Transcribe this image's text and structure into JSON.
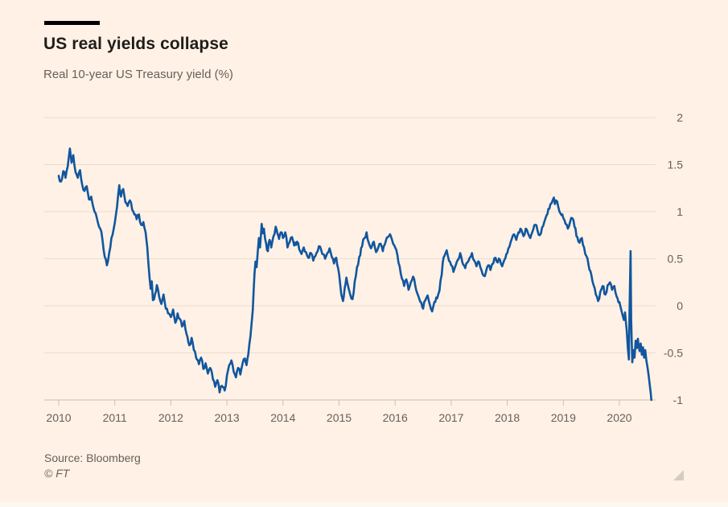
{
  "chart": {
    "title": "US real yields collapse",
    "subtitle": "Real 10-year US Treasury yield (%)",
    "source": "Source: Bloomberg",
    "copyright": "© FT",
    "colors": {
      "background": "#FFF1E5",
      "line": "#11569E",
      "title_text": "#1F1D1B",
      "muted_text": "#66605C",
      "gridline": "#E9DDD0",
      "axis": "#C9C0B6",
      "top_bar": "#000000",
      "resize_handle": "#D5CCC2"
    },
    "icons": {
      "resize_handle": "resize-grip-triangle"
    }
  },
  "chart_data": {
    "type": "line",
    "title": "US real yields collapse",
    "subtitle": "Real 10-year US Treasury yield (%)",
    "xlabel": "",
    "ylabel": "Real 10-year US Treasury yield (%)",
    "x_ticks": [
      2010,
      2011,
      2012,
      2013,
      2014,
      2015,
      2016,
      2017,
      2018,
      2019,
      2020
    ],
    "y_ticks": [
      2,
      1.5,
      1,
      0.5,
      0,
      -0.5,
      -1
    ],
    "xlim": [
      2009.75,
      2020.9
    ],
    "ylim": [
      -1,
      2
    ],
    "grid": "horizontal",
    "legend": "none",
    "y_axis_side": "right",
    "series": [
      {
        "name": "Real 10-year US Treasury yield (%)",
        "points": [
          [
            2010.0,
            1.38
          ],
          [
            2010.04,
            1.32
          ],
          [
            2010.08,
            1.43
          ],
          [
            2010.12,
            1.36
          ],
          [
            2010.16,
            1.48
          ],
          [
            2010.2,
            1.67
          ],
          [
            2010.23,
            1.52
          ],
          [
            2010.26,
            1.6
          ],
          [
            2010.3,
            1.42
          ],
          [
            2010.34,
            1.36
          ],
          [
            2010.38,
            1.44
          ],
          [
            2010.42,
            1.28
          ],
          [
            2010.46,
            1.22
          ],
          [
            2010.5,
            1.27
          ],
          [
            2010.54,
            1.13
          ],
          [
            2010.58,
            1.16
          ],
          [
            2010.62,
            1.04
          ],
          [
            2010.66,
            0.98
          ],
          [
            2010.7,
            0.88
          ],
          [
            2010.74,
            0.82
          ],
          [
            2010.78,
            0.7
          ],
          [
            2010.82,
            0.52
          ],
          [
            2010.86,
            0.43
          ],
          [
            2010.9,
            0.56
          ],
          [
            2010.94,
            0.72
          ],
          [
            2011.0,
            0.88
          ],
          [
            2011.04,
            1.05
          ],
          [
            2011.08,
            1.28
          ],
          [
            2011.11,
            1.16
          ],
          [
            2011.15,
            1.24
          ],
          [
            2011.19,
            1.1
          ],
          [
            2011.23,
            1.06
          ],
          [
            2011.27,
            1.12
          ],
          [
            2011.31,
            1.02
          ],
          [
            2011.35,
            0.97
          ],
          [
            2011.39,
            0.92
          ],
          [
            2011.43,
            0.97
          ],
          [
            2011.47,
            0.86
          ],
          [
            2011.51,
            0.89
          ],
          [
            2011.55,
            0.78
          ],
          [
            2011.58,
            0.62
          ],
          [
            2011.6,
            0.45
          ],
          [
            2011.62,
            0.3
          ],
          [
            2011.64,
            0.18
          ],
          [
            2011.66,
            0.26
          ],
          [
            2011.68,
            0.06
          ],
          [
            2011.72,
            0.13
          ],
          [
            2011.75,
            0.22
          ],
          [
            2011.79,
            0.1
          ],
          [
            2011.83,
            0.02
          ],
          [
            2011.87,
            0.12
          ],
          [
            2011.91,
            -0.03
          ],
          [
            2011.95,
            -0.08
          ],
          [
            2012.0,
            -0.12
          ],
          [
            2012.04,
            -0.04
          ],
          [
            2012.08,
            -0.18
          ],
          [
            2012.12,
            -0.08
          ],
          [
            2012.16,
            -0.14
          ],
          [
            2012.2,
            -0.22
          ],
          [
            2012.24,
            -0.16
          ],
          [
            2012.28,
            -0.3
          ],
          [
            2012.33,
            -0.42
          ],
          [
            2012.37,
            -0.34
          ],
          [
            2012.41,
            -0.47
          ],
          [
            2012.45,
            -0.55
          ],
          [
            2012.5,
            -0.62
          ],
          [
            2012.54,
            -0.55
          ],
          [
            2012.58,
            -0.67
          ],
          [
            2012.62,
            -0.61
          ],
          [
            2012.66,
            -0.72
          ],
          [
            2012.7,
            -0.66
          ],
          [
            2012.75,
            -0.78
          ],
          [
            2012.79,
            -0.86
          ],
          [
            2012.83,
            -0.79
          ],
          [
            2012.87,
            -0.92
          ],
          [
            2012.91,
            -0.85
          ],
          [
            2012.96,
            -0.9
          ],
          [
            2013.0,
            -0.74
          ],
          [
            2013.04,
            -0.63
          ],
          [
            2013.08,
            -0.58
          ],
          [
            2013.12,
            -0.7
          ],
          [
            2013.16,
            -0.76
          ],
          [
            2013.2,
            -0.66
          ],
          [
            2013.24,
            -0.73
          ],
          [
            2013.28,
            -0.61
          ],
          [
            2013.32,
            -0.56
          ],
          [
            2013.35,
            -0.63
          ],
          [
            2013.38,
            -0.52
          ],
          [
            2013.42,
            -0.32
          ],
          [
            2013.46,
            -0.05
          ],
          [
            2013.49,
            0.33
          ],
          [
            2013.51,
            0.47
          ],
          [
            2013.53,
            0.41
          ],
          [
            2013.55,
            0.57
          ],
          [
            2013.57,
            0.72
          ],
          [
            2013.59,
            0.62
          ],
          [
            2013.62,
            0.87
          ],
          [
            2013.64,
            0.77
          ],
          [
            2013.66,
            0.82
          ],
          [
            2013.7,
            0.66
          ],
          [
            2013.73,
            0.58
          ],
          [
            2013.76,
            0.7
          ],
          [
            2013.79,
            0.62
          ],
          [
            2013.83,
            0.74
          ],
          [
            2013.87,
            0.84
          ],
          [
            2013.9,
            0.77
          ],
          [
            2013.93,
            0.71
          ],
          [
            2013.96,
            0.78
          ],
          [
            2014.0,
            0.72
          ],
          [
            2014.04,
            0.78
          ],
          [
            2014.08,
            0.62
          ],
          [
            2014.12,
            0.68
          ],
          [
            2014.16,
            0.73
          ],
          [
            2014.2,
            0.64
          ],
          [
            2014.25,
            0.68
          ],
          [
            2014.29,
            0.6
          ],
          [
            2014.33,
            0.55
          ],
          [
            2014.37,
            0.62
          ],
          [
            2014.41,
            0.57
          ],
          [
            2014.45,
            0.51
          ],
          [
            2014.5,
            0.56
          ],
          [
            2014.54,
            0.48
          ],
          [
            2014.58,
            0.53
          ],
          [
            2014.62,
            0.58
          ],
          [
            2014.66,
            0.63
          ],
          [
            2014.7,
            0.55
          ],
          [
            2014.75,
            0.5
          ],
          [
            2014.79,
            0.56
          ],
          [
            2014.83,
            0.61
          ],
          [
            2014.87,
            0.52
          ],
          [
            2014.91,
            0.45
          ],
          [
            2014.95,
            0.51
          ],
          [
            2015.0,
            0.34
          ],
          [
            2015.04,
            0.12
          ],
          [
            2015.07,
            0.05
          ],
          [
            2015.1,
            0.19
          ],
          [
            2015.13,
            0.3
          ],
          [
            2015.16,
            0.21
          ],
          [
            2015.2,
            0.12
          ],
          [
            2015.24,
            0.07
          ],
          [
            2015.28,
            0.26
          ],
          [
            2015.32,
            0.41
          ],
          [
            2015.36,
            0.52
          ],
          [
            2015.41,
            0.63
          ],
          [
            2015.45,
            0.72
          ],
          [
            2015.49,
            0.78
          ],
          [
            2015.53,
            0.67
          ],
          [
            2015.57,
            0.61
          ],
          [
            2015.62,
            0.68
          ],
          [
            2015.66,
            0.57
          ],
          [
            2015.7,
            0.62
          ],
          [
            2015.74,
            0.66
          ],
          [
            2015.78,
            0.58
          ],
          [
            2015.83,
            0.68
          ],
          [
            2015.87,
            0.73
          ],
          [
            2015.91,
            0.76
          ],
          [
            2015.95,
            0.69
          ],
          [
            2016.0,
            0.62
          ],
          [
            2016.04,
            0.54
          ],
          [
            2016.08,
            0.42
          ],
          [
            2016.12,
            0.29
          ],
          [
            2016.16,
            0.21
          ],
          [
            2016.2,
            0.28
          ],
          [
            2016.24,
            0.17
          ],
          [
            2016.28,
            0.25
          ],
          [
            2016.32,
            0.31
          ],
          [
            2016.36,
            0.21
          ],
          [
            2016.41,
            0.11
          ],
          [
            2016.45,
            0.04
          ],
          [
            2016.5,
            -0.03
          ],
          [
            2016.54,
            0.06
          ],
          [
            2016.58,
            0.11
          ],
          [
            2016.62,
            0.01
          ],
          [
            2016.66,
            -0.06
          ],
          [
            2016.7,
            0.04
          ],
          [
            2016.75,
            0.08
          ],
          [
            2016.79,
            0.16
          ],
          [
            2016.83,
            0.33
          ],
          [
            2016.85,
            0.46
          ],
          [
            2016.88,
            0.53
          ],
          [
            2016.92,
            0.59
          ],
          [
            2016.96,
            0.48
          ],
          [
            2017.0,
            0.43
          ],
          [
            2017.04,
            0.36
          ],
          [
            2017.08,
            0.43
          ],
          [
            2017.12,
            0.49
          ],
          [
            2017.16,
            0.56
          ],
          [
            2017.2,
            0.46
          ],
          [
            2017.25,
            0.4
          ],
          [
            2017.29,
            0.46
          ],
          [
            2017.33,
            0.51
          ],
          [
            2017.37,
            0.56
          ],
          [
            2017.41,
            0.48
          ],
          [
            2017.45,
            0.42
          ],
          [
            2017.5,
            0.46
          ],
          [
            2017.54,
            0.38
          ],
          [
            2017.58,
            0.32
          ],
          [
            2017.62,
            0.36
          ],
          [
            2017.66,
            0.43
          ],
          [
            2017.7,
            0.38
          ],
          [
            2017.75,
            0.45
          ],
          [
            2017.79,
            0.51
          ],
          [
            2017.83,
            0.46
          ],
          [
            2017.87,
            0.49
          ],
          [
            2017.91,
            0.42
          ],
          [
            2017.95,
            0.49
          ],
          [
            2018.0,
            0.56
          ],
          [
            2018.04,
            0.63
          ],
          [
            2018.08,
            0.71
          ],
          [
            2018.12,
            0.76
          ],
          [
            2018.16,
            0.7
          ],
          [
            2018.2,
            0.78
          ],
          [
            2018.25,
            0.81
          ],
          [
            2018.29,
            0.74
          ],
          [
            2018.33,
            0.82
          ],
          [
            2018.37,
            0.77
          ],
          [
            2018.41,
            0.72
          ],
          [
            2018.45,
            0.79
          ],
          [
            2018.5,
            0.86
          ],
          [
            2018.54,
            0.8
          ],
          [
            2018.58,
            0.75
          ],
          [
            2018.62,
            0.83
          ],
          [
            2018.66,
            0.89
          ],
          [
            2018.7,
            0.96
          ],
          [
            2018.75,
            1.03
          ],
          [
            2018.79,
            1.09
          ],
          [
            2018.83,
            1.15
          ],
          [
            2018.85,
            1.08
          ],
          [
            2018.87,
            1.12
          ],
          [
            2018.91,
            1.05
          ],
          [
            2018.95,
            0.98
          ],
          [
            2019.0,
            0.93
          ],
          [
            2019.04,
            0.87
          ],
          [
            2019.08,
            0.82
          ],
          [
            2019.12,
            0.89
          ],
          [
            2019.16,
            0.93
          ],
          [
            2019.2,
            0.84
          ],
          [
            2019.25,
            0.73
          ],
          [
            2019.29,
            0.67
          ],
          [
            2019.33,
            0.72
          ],
          [
            2019.37,
            0.62
          ],
          [
            2019.41,
            0.53
          ],
          [
            2019.45,
            0.43
          ],
          [
            2019.5,
            0.33
          ],
          [
            2019.54,
            0.22
          ],
          [
            2019.58,
            0.12
          ],
          [
            2019.62,
            0.05
          ],
          [
            2019.66,
            0.15
          ],
          [
            2019.7,
            0.21
          ],
          [
            2019.75,
            0.12
          ],
          [
            2019.79,
            0.22
          ],
          [
            2019.83,
            0.25
          ],
          [
            2019.87,
            0.17
          ],
          [
            2019.91,
            0.21
          ],
          [
            2019.95,
            0.1
          ],
          [
            2020.0,
            0.04
          ],
          [
            2020.04,
            -0.06
          ],
          [
            2020.08,
            -0.15
          ],
          [
            2020.1,
            -0.07
          ],
          [
            2020.13,
            -0.26
          ],
          [
            2020.15,
            -0.45
          ],
          [
            2020.17,
            -0.57
          ],
          [
            2020.18,
            -0.1
          ],
          [
            2020.2,
            0.58
          ],
          [
            2020.21,
            -0.14
          ],
          [
            2020.23,
            -0.6
          ],
          [
            2020.25,
            -0.47
          ],
          [
            2020.27,
            -0.55
          ],
          [
            2020.29,
            -0.37
          ],
          [
            2020.31,
            -0.45
          ],
          [
            2020.33,
            -0.35
          ],
          [
            2020.36,
            -0.48
          ],
          [
            2020.38,
            -0.4
          ],
          [
            2020.4,
            -0.52
          ],
          [
            2020.42,
            -0.44
          ],
          [
            2020.44,
            -0.55
          ],
          [
            2020.46,
            -0.47
          ],
          [
            2020.48,
            -0.58
          ],
          [
            2020.5,
            -0.65
          ],
          [
            2020.52,
            -0.73
          ],
          [
            2020.54,
            -0.83
          ],
          [
            2020.56,
            -0.93
          ],
          [
            2020.57,
            -1.0
          ]
        ]
      }
    ]
  }
}
